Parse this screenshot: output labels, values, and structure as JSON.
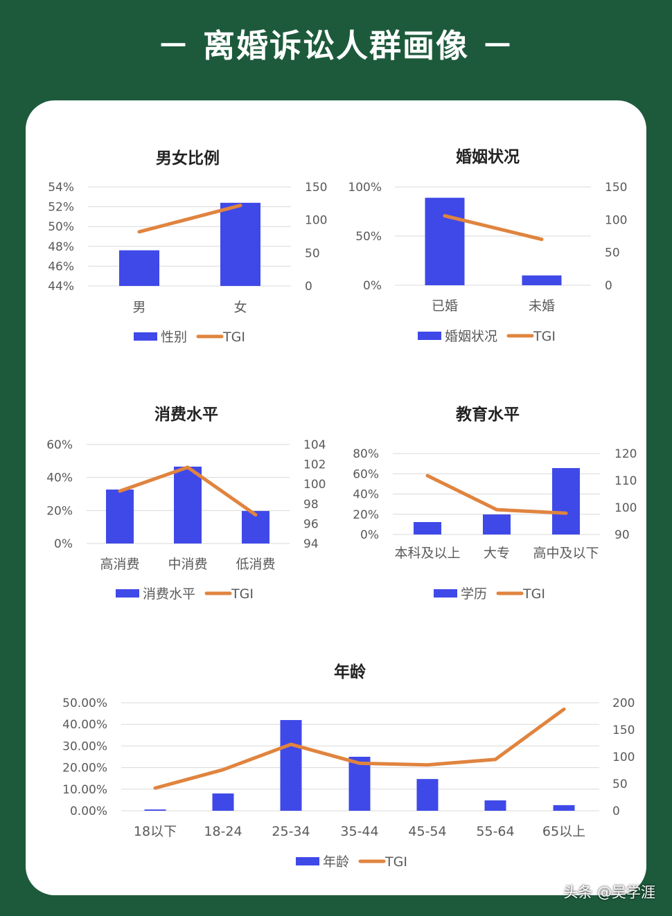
{
  "page_title": "－ 离婚诉讼人群画像 －",
  "watermark": "头条 @吴学涯",
  "colors": {
    "background": "#1d5a3c",
    "bar": "#3f49e8",
    "line": "#e0843f",
    "card": "#ffffff"
  },
  "chart_data": [
    {
      "type": "bar+line",
      "title": "男女比例",
      "categories": [
        "男",
        "女"
      ],
      "series": [
        {
          "name": "性别",
          "type": "bar",
          "axis": "left",
          "values": [
            0.476,
            0.524
          ]
        },
        {
          "name": "TGI",
          "type": "line",
          "axis": "right",
          "values": [
            82,
            122
          ]
        }
      ],
      "left_axis": {
        "ylim": [
          0.44,
          0.54
        ],
        "ticks": [
          "44%",
          "46%",
          "48%",
          "50%",
          "52%",
          "54%"
        ]
      },
      "right_axis": {
        "ylim": [
          0,
          150
        ],
        "ticks": [
          "0",
          "50",
          "100",
          "150"
        ]
      },
      "grid": true,
      "legend": "bottom"
    },
    {
      "type": "bar+line",
      "title": "婚姻状况",
      "categories": [
        "已婚",
        "未婚"
      ],
      "series": [
        {
          "name": "婚姻状况",
          "type": "bar",
          "axis": "left",
          "values": [
            0.89,
            0.1
          ]
        },
        {
          "name": "TGI",
          "type": "line",
          "axis": "right",
          "values": [
            106,
            70
          ]
        }
      ],
      "left_axis": {
        "ylim": [
          0,
          1
        ],
        "ticks": [
          "0%",
          "50%",
          "100%"
        ]
      },
      "right_axis": {
        "ylim": [
          0,
          150
        ],
        "ticks": [
          "0",
          "50",
          "100",
          "150"
        ]
      },
      "grid": true,
      "legend": "bottom"
    },
    {
      "type": "bar+line",
      "title": "消费水平",
      "categories": [
        "高消费",
        "中消费",
        "低消费"
      ],
      "series": [
        {
          "name": "消费水平",
          "type": "bar",
          "axis": "left",
          "values": [
            0.327,
            0.466,
            0.197
          ]
        },
        {
          "name": "TGI",
          "type": "line",
          "axis": "right",
          "values": [
            99.3,
            101.7,
            96.9
          ]
        }
      ],
      "left_axis": {
        "ylim": [
          0,
          0.6
        ],
        "ticks": [
          "0%",
          "20%",
          "40%",
          "60%"
        ]
      },
      "right_axis": {
        "ylim": [
          94,
          104
        ],
        "ticks": [
          "94",
          "96",
          "98",
          "100",
          "102",
          "104"
        ]
      },
      "grid": true,
      "legend": "bottom"
    },
    {
      "type": "bar+line",
      "title": "教育水平",
      "categories": [
        "本科及以上",
        "大专",
        "高中及以下"
      ],
      "series": [
        {
          "name": "学历",
          "type": "bar",
          "axis": "left",
          "values": [
            0.123,
            0.198,
            0.656
          ]
        },
        {
          "name": "TGI",
          "type": "line",
          "axis": "right",
          "values": [
            111.8,
            99.2,
            97.9
          ]
        }
      ],
      "left_axis": {
        "ylim": [
          0,
          0.8
        ],
        "ticks": [
          "0%",
          "20%",
          "40%",
          "60%",
          "80%"
        ]
      },
      "right_axis": {
        "ylim": [
          90,
          120
        ],
        "ticks": [
          "90",
          "100",
          "110",
          "120"
        ]
      },
      "grid": true,
      "legend": "bottom"
    },
    {
      "type": "bar+line",
      "title": "年龄",
      "categories": [
        "18以下",
        "18-24",
        "25-34",
        "35-44",
        "45-54",
        "55-64",
        "65以上"
      ],
      "series": [
        {
          "name": "年龄",
          "type": "bar",
          "axis": "left",
          "values": [
            0.006,
            0.08,
            0.42,
            0.25,
            0.147,
            0.048,
            0.026
          ]
        },
        {
          "name": "TGI",
          "type": "line",
          "axis": "right",
          "values": [
            42,
            76,
            123,
            88,
            85,
            95,
            188
          ]
        }
      ],
      "left_axis": {
        "ylim": [
          0,
          0.5
        ],
        "ticks": [
          "0.00%",
          "10.00%",
          "20.00%",
          "30.00%",
          "40.00%",
          "50.00%"
        ]
      },
      "right_axis": {
        "ylim": [
          0,
          200
        ],
        "ticks": [
          "0",
          "50",
          "100",
          "150",
          "200"
        ]
      },
      "grid": true,
      "legend": "bottom"
    }
  ]
}
